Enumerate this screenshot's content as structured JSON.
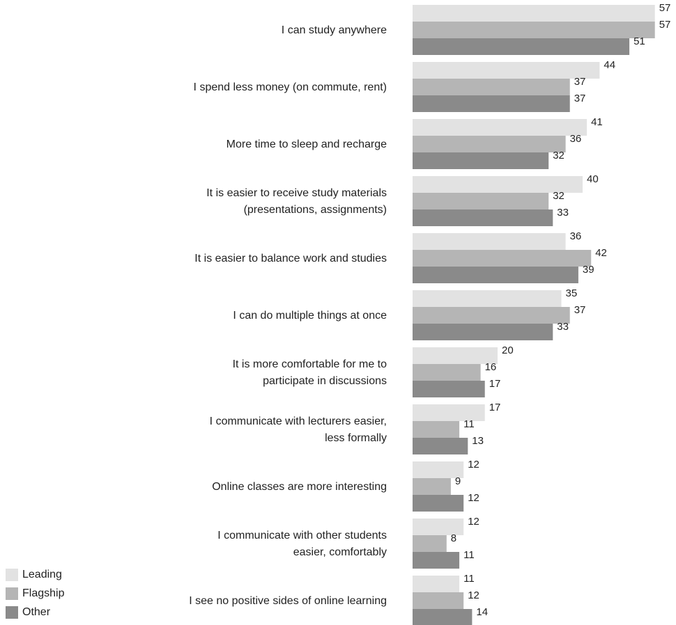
{
  "chart_data": {
    "type": "bar",
    "orientation": "horizontal",
    "categories": [
      "I can study anywhere",
      "I spend less money (on commute, rent)",
      "More time to sleep and recharge",
      "It is easier to receive study materials\n(presentations, assignments)",
      "It is easier to balance work and studies",
      "I can do multiple things at once",
      "It is more comfortable for me to\nparticipate in discussions",
      "I communicate with lecturers easier,\nless formally",
      "Online classes are more interesting",
      "I communicate with other students\neasier, comfortably",
      "I see no positive sides of online learning"
    ],
    "series": [
      {
        "name": "Leading",
        "color": "#e2e2e2",
        "values": [
          57,
          44,
          41,
          40,
          36,
          35,
          20,
          17,
          12,
          12,
          11
        ]
      },
      {
        "name": "Flagship",
        "color": "#b5b5b5",
        "values": [
          57,
          37,
          36,
          32,
          42,
          37,
          16,
          11,
          9,
          8,
          12
        ]
      },
      {
        "name": "Other",
        "color": "#8a8a8a",
        "values": [
          51,
          37,
          32,
          33,
          39,
          33,
          17,
          13,
          12,
          11,
          14
        ]
      }
    ],
    "xlim": [
      0,
      57
    ],
    "legend_position": "bottom-left",
    "grid": false
  }
}
